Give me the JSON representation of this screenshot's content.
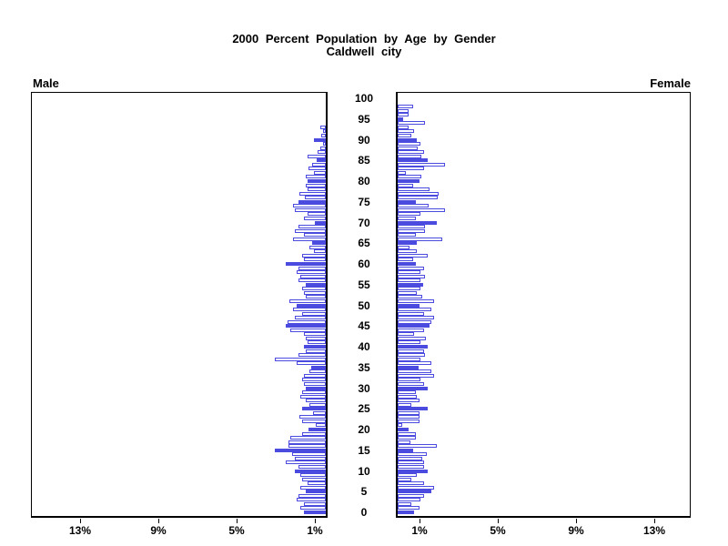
{
  "title": {
    "line1": "2000 Percent Population by Age by Gender",
    "line2": "Caldwell city"
  },
  "panel_labels": {
    "male": "Male",
    "female": "Female"
  },
  "colors": {
    "bar_blue": "#4b4be0",
    "hollow_bar_fill": "#ffffff",
    "axis_black": "#000000",
    "background": "#ffffff"
  },
  "chart_data": {
    "type": "bar",
    "subtype": "population_pyramid",
    "title": "2000 Percent Population by Age by Gender",
    "subtitle": "Caldwell city",
    "orientation": "horizontal back-to-back, male bars grow left, female bars grow right",
    "x_unit": "percent of population",
    "xlim": [
      0,
      15
    ],
    "age_min": 0,
    "age_max": 100,
    "age_axis_tick_labels": [
      0,
      5,
      10,
      15,
      20,
      25,
      30,
      35,
      40,
      45,
      50,
      55,
      60,
      65,
      70,
      75,
      80,
      85,
      90,
      95,
      100
    ],
    "male_axis_tick_labels": [
      "13%",
      "9%",
      "5%",
      "1%"
    ],
    "female_axis_tick_labels": [
      "1%",
      "5%",
      "9%",
      "13%"
    ],
    "solid_bar_every": 5,
    "legend": "bars at ages divisible by 5 are solid blue; other single-year bars are white with blue outline",
    "series": [
      {
        "name": "Male",
        "values_by_single_year_of_age": [
          1.1,
          1.31,
          1.12,
          1.5,
          1.4,
          1.03,
          1.31,
          0.94,
          1.22,
          1.31,
          1.59,
          1.4,
          2.05,
          1.59,
          1.73,
          2.61,
          1.91,
          1.91,
          1.82,
          1.22,
          0.89,
          0.52,
          1.22,
          1.36,
          0.66,
          1.22,
          0.85,
          1.03,
          1.31,
          1.22,
          1.03,
          1.12,
          1.22,
          1.12,
          0.85,
          0.76,
          1.5,
          2.61,
          1.4,
          1.03,
          1.12,
          0.94,
          1.03,
          1.12,
          1.82,
          2.05,
          1.96,
          1.59,
          1.22,
          1.68,
          1.5,
          1.86,
          1.03,
          1.12,
          1.22,
          1.03,
          1.4,
          1.31,
          1.5,
          1.4,
          2.05,
          1.12,
          1.22,
          0.6,
          0.86,
          0.7,
          1.68,
          1.12,
          1.59,
          1.4,
          0.57,
          1.12,
          0.94,
          1.59,
          1.68,
          1.4,
          1.08,
          1.35,
          0.94,
          1.03,
          0.94,
          1.03,
          0.6,
          0.87,
          0.7,
          0.47,
          0.94,
          0.43,
          0.26,
          0.15,
          0.6,
          0.22,
          0.15,
          0.26,
          0,
          0,
          0,
          0,
          0,
          0,
          0
        ]
      },
      {
        "name": "Female",
        "values_by_single_year_of_age": [
          0.85,
          1.1,
          0.7,
          1.16,
          1.35,
          1.72,
          1.86,
          1.35,
          0.7,
          0.98,
          1.53,
          1.35,
          1.35,
          1.26,
          1.49,
          0.79,
          2.0,
          0.65,
          0.93,
          0.93,
          0.56,
          0.23,
          1.12,
          1.12,
          1.12,
          1.53,
          0.7,
          1.12,
          0.98,
          0.93,
          1.53,
          1.35,
          1.16,
          1.86,
          1.72,
          1.07,
          1.72,
          1.16,
          1.4,
          1.35,
          1.53,
          1.16,
          1.44,
          0.84,
          1.35,
          1.63,
          1.72,
          1.86,
          1.35,
          1.72,
          1.12,
          1.86,
          1.26,
          0.98,
          1.16,
          1.3,
          1.16,
          1.4,
          1.16,
          1.35,
          0.93,
          0.79,
          1.53,
          0.98,
          0.6,
          0.98,
          2.28,
          0.93,
          1.4,
          1.4,
          2.0,
          0.93,
          1.16,
          2.42,
          1.58,
          0.93,
          2.05,
          2.09,
          1.63,
          0.79,
          1.12,
          1.21,
          0.42,
          1.35,
          2.42,
          1.53,
          1.21,
          1.35,
          1.02,
          1.16,
          0.98,
          0.7,
          0.84,
          0.56,
          1.4,
          0.3,
          0.56,
          0.56,
          0.79,
          0,
          0
        ]
      }
    ]
  }
}
